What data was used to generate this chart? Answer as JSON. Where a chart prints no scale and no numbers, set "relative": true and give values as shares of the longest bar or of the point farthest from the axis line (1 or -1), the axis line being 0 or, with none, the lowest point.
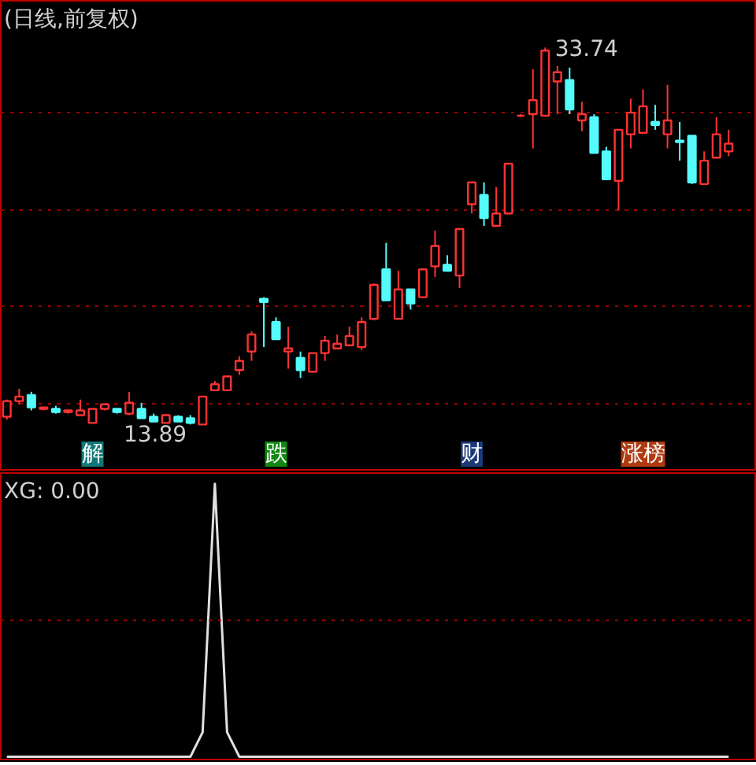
{
  "chart_data": [
    {
      "type": "candlestick",
      "title": "(日线,前复权)",
      "categories": [
        null,
        null,
        null,
        null,
        null,
        null,
        null,
        null,
        null,
        null,
        null,
        null,
        null,
        null,
        null,
        null,
        null,
        null,
        null,
        null,
        null,
        null,
        null,
        null,
        null,
        null,
        null,
        null,
        null,
        null,
        null,
        null,
        null,
        null,
        null,
        null,
        null,
        null,
        null,
        null,
        null,
        null,
        null,
        null,
        null,
        null,
        null,
        null,
        null,
        null,
        null,
        null,
        null,
        null,
        null,
        null,
        null,
        null,
        null,
        null
      ],
      "ohlc": [
        [
          14.3,
          15.2,
          14.14,
          15.12
        ],
        [
          15.12,
          15.77,
          14.95,
          15.36
        ],
        [
          15.44,
          15.61,
          14.63,
          14.79
        ],
        [
          14.71,
          14.79,
          14.63,
          14.79
        ],
        [
          14.71,
          14.87,
          14.46,
          14.54
        ],
        [
          14.54,
          14.63,
          14.46,
          14.63
        ],
        [
          14.38,
          15.2,
          14.38,
          14.63
        ],
        [
          13.97,
          14.71,
          13.97,
          14.71
        ],
        [
          14.71,
          14.95,
          14.63,
          14.95
        ],
        [
          14.71,
          14.71,
          14.46,
          14.54
        ],
        [
          14.46,
          15.61,
          14.38,
          15.03
        ],
        [
          14.71,
          15.03,
          14.22,
          14.22
        ],
        [
          14.3,
          14.46,
          14.05,
          14.05
        ],
        [
          13.97,
          14.38,
          13.97,
          14.38
        ],
        [
          14.3,
          14.38,
          14.05,
          14.05
        ],
        [
          14.22,
          14.38,
          13.89,
          13.97
        ],
        [
          13.89,
          15.36,
          13.89,
          15.36
        ],
        [
          15.69,
          16.18,
          15.69,
          16.01
        ],
        [
          15.69,
          16.42,
          15.69,
          16.42
        ],
        [
          16.75,
          17.48,
          16.5,
          17.24
        ],
        [
          17.73,
          18.79,
          17.24,
          18.63
        ],
        [
          20.51,
          20.59,
          17.97,
          20.34
        ],
        [
          19.28,
          19.53,
          18.38,
          18.38
        ],
        [
          17.73,
          19.04,
          16.83,
          17.89
        ],
        [
          17.4,
          17.73,
          16.34,
          16.75
        ],
        [
          16.67,
          17.65,
          16.67,
          17.65
        ],
        [
          17.65,
          18.55,
          17.24,
          18.3
        ],
        [
          17.89,
          18.63,
          17.89,
          18.14
        ],
        [
          18.06,
          19.04,
          18.06,
          18.55
        ],
        [
          17.97,
          19.53,
          17.81,
          19.28
        ],
        [
          19.45,
          21.32,
          19.37,
          21.24
        ],
        [
          22.06,
          23.45,
          20.43,
          20.43
        ],
        [
          19.45,
          21.98,
          19.45,
          21.0
        ],
        [
          21.0,
          21.0,
          19.94,
          20.26
        ],
        [
          20.59,
          22.06,
          20.59,
          22.06
        ],
        [
          22.22,
          24.1,
          21.65,
          23.29
        ],
        [
          22.3,
          22.8,
          21.98,
          21.98
        ],
        [
          21.73,
          24.18,
          21.08,
          24.18
        ],
        [
          25.49,
          26.64,
          25.0,
          26.64
        ],
        [
          25.98,
          26.64,
          24.35,
          24.76
        ],
        [
          24.35,
          26.39,
          24.35,
          25.0
        ],
        [
          25.0,
          27.62,
          25.0,
          27.62
        ],
        [
          30.15,
          30.23,
          30.07,
          30.15
        ],
        [
          30.23,
          32.6,
          28.43,
          30.97
        ],
        [
          30.15,
          33.74,
          30.15,
          33.58
        ],
        [
          31.95,
          32.76,
          30.23,
          32.44
        ],
        [
          32.03,
          32.68,
          30.23,
          30.48
        ],
        [
          29.9,
          30.88,
          29.33,
          30.23
        ],
        [
          30.07,
          30.23,
          28.19,
          28.19
        ],
        [
          28.27,
          28.51,
          26.8,
          26.8
        ],
        [
          26.72,
          29.41,
          25.16,
          29.41
        ],
        [
          29.17,
          31.05,
          28.43,
          30.31
        ],
        [
          29.25,
          31.54,
          29.25,
          30.64
        ],
        [
          29.82,
          30.72,
          29.41,
          29.66
        ],
        [
          29.17,
          31.78,
          28.43,
          29.9
        ],
        [
          28.84,
          29.82,
          27.78,
          28.76
        ],
        [
          29.09,
          29.09,
          26.55,
          26.64
        ],
        [
          26.55,
          28.27,
          26.55,
          27.78
        ],
        [
          27.94,
          30.07,
          27.94,
          29.17
        ],
        [
          28.27,
          29.41,
          28.02,
          28.68
        ]
      ],
      "ylim": [
        11.5,
        36.2
      ],
      "yticks": [
        {
          "value": 15.0,
          "label": null
        },
        {
          "value": 20.1,
          "label": null
        },
        {
          "value": 25.2,
          "label": null
        },
        {
          "value": 30.3,
          "label": null
        }
      ],
      "grid": "y",
      "tick_labels": false,
      "annotations": [
        "33.74",
        {
          "text": "13.89",
          "y": 13.89
        },
        "解",
        "跌",
        "财",
        "涨榜"
      ]
    },
    {
      "type": "line",
      "title": "XG: 0.00",
      "relative": true,
      "categories": [
        null,
        null,
        null,
        null,
        null,
        null,
        null,
        null,
        null,
        null,
        null,
        null,
        null,
        null,
        null,
        null,
        null,
        null,
        null,
        null,
        null,
        null,
        null,
        null,
        null,
        null,
        null,
        null,
        null,
        null,
        null,
        null,
        null,
        null,
        null,
        null,
        null,
        null,
        null,
        null,
        null,
        null,
        null,
        null,
        null,
        null,
        null,
        null,
        null,
        null,
        null,
        null,
        null,
        null,
        null,
        null,
        null,
        null,
        null,
        null
      ],
      "series": [
        {
          "color": "#e0e0e0",
          "values": [
            0,
            0,
            0,
            0,
            0,
            0,
            0,
            0,
            0,
            0,
            0,
            0,
            0,
            0,
            0,
            0,
            0.09,
            1,
            0.09,
            0,
            0,
            0,
            0,
            0,
            0,
            0,
            0,
            0,
            0,
            0,
            0,
            0,
            0,
            0,
            0,
            0,
            0,
            0,
            0,
            0,
            0,
            0,
            0,
            0,
            0,
            0,
            0,
            0,
            0,
            0,
            0,
            0,
            0,
            0,
            0,
            0,
            0,
            0,
            0,
            0
          ]
        }
      ],
      "ref_lines": [
        {
          "axis": "y",
          "value": 0.5,
          "color": "#a00000",
          "line_style": "dotted"
        }
      ],
      "tick_labels": false,
      "grid": false
    }
  ]
}
